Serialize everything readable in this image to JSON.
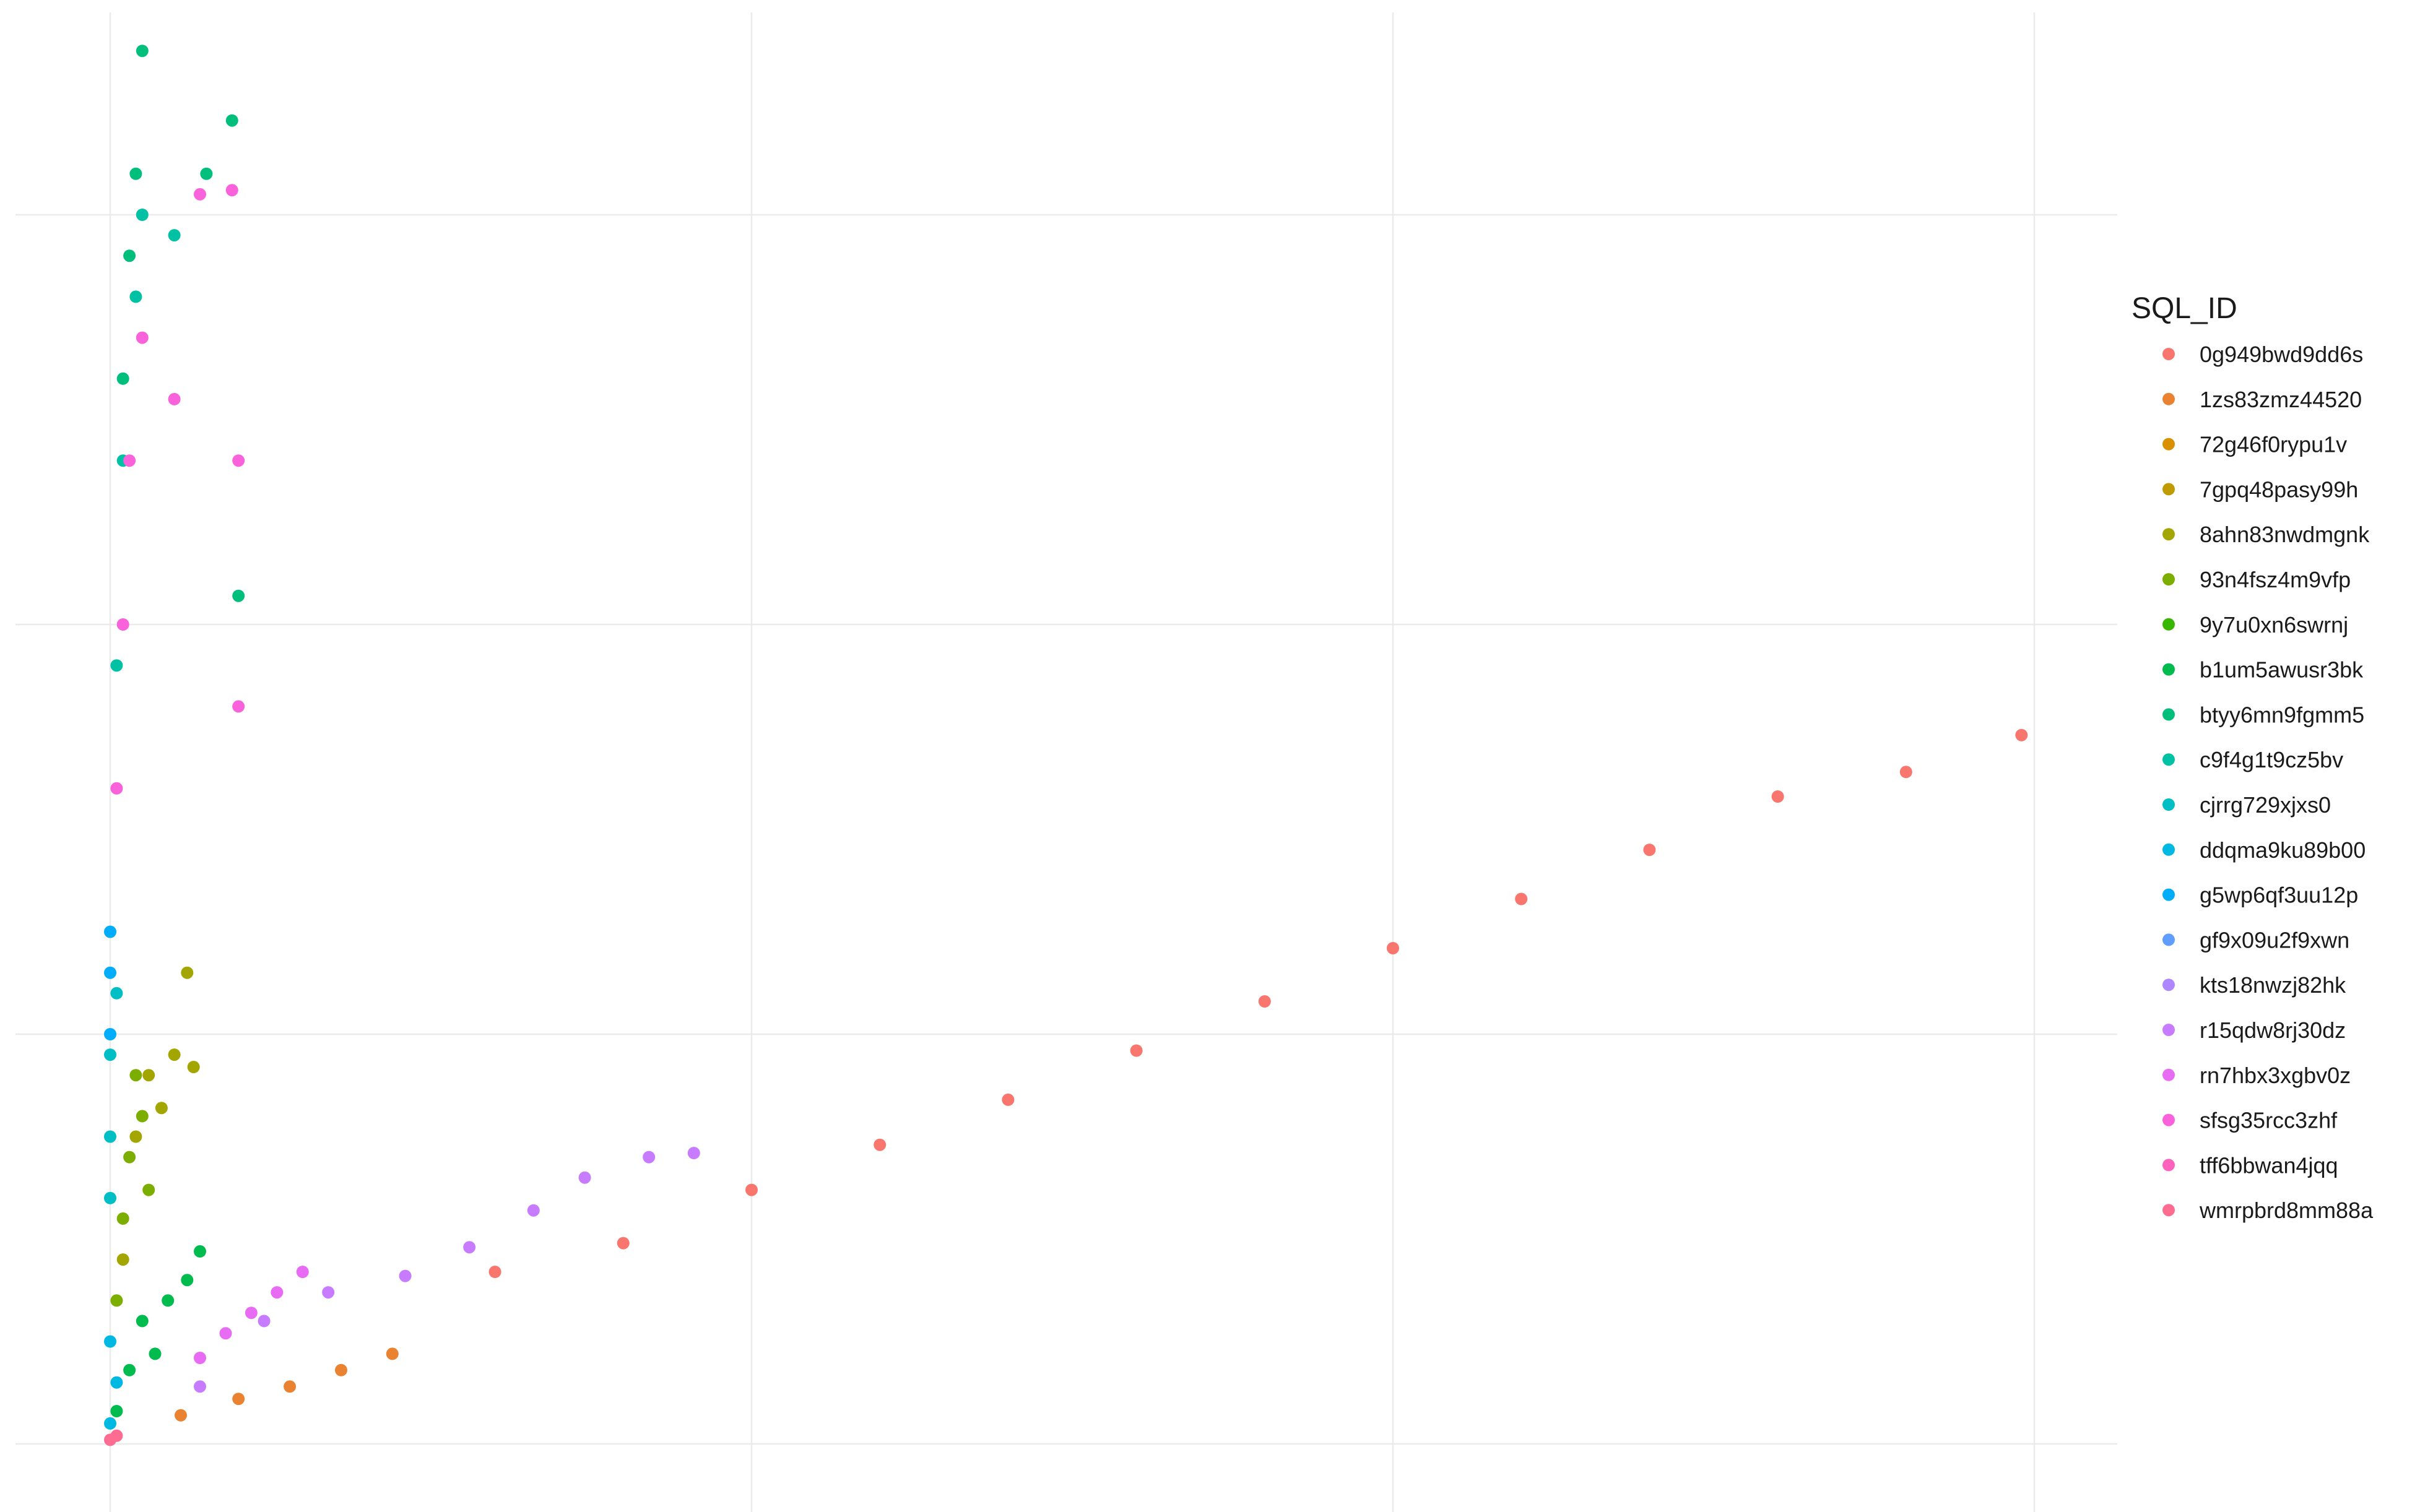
{
  "chart_data": {
    "type": "scatter",
    "title": "",
    "xlabel": "",
    "ylabel": "",
    "xlim": [
      0,
      3.28
    ],
    "ylim": [
      0,
      3.6
    ],
    "x_gridlines": [
      0,
      1,
      2,
      3
    ],
    "y_gridlines": [
      0,
      1,
      2,
      3
    ],
    "grid": true,
    "legend_title": "SQL_ID",
    "legend_position": "right",
    "series": [
      {
        "name": "0g949bwd9dd6s",
        "color": "#F8766D",
        "points": [
          [
            0.6,
            0.42
          ],
          [
            0.8,
            0.49
          ],
          [
            1.0,
            0.62
          ],
          [
            1.2,
            0.73
          ],
          [
            1.4,
            0.84
          ],
          [
            1.6,
            0.96
          ],
          [
            1.8,
            1.08
          ],
          [
            2.0,
            1.21
          ],
          [
            2.2,
            1.33
          ],
          [
            2.4,
            1.45
          ],
          [
            2.6,
            1.58
          ],
          [
            2.8,
            1.64
          ],
          [
            2.98,
            1.73
          ]
        ]
      },
      {
        "name": "1zs83zmz44520",
        "color": "#EA8331",
        "points": [
          [
            0.11,
            0.07
          ],
          [
            0.2,
            0.11
          ],
          [
            0.28,
            0.14
          ],
          [
            0.36,
            0.18
          ],
          [
            0.44,
            0.22
          ]
        ]
      },
      {
        "name": "72g46f0rypu1v",
        "color": "#D89000",
        "points": []
      },
      {
        "name": "7gpq48pasy99h",
        "color": "#C09B00",
        "points": []
      },
      {
        "name": "8ahn83nwdmgnk",
        "color": "#A3A500",
        "points": [
          [
            0.02,
            0.45
          ],
          [
            0.04,
            0.75
          ],
          [
            0.06,
            0.9
          ],
          [
            0.08,
            0.82
          ],
          [
            0.1,
            0.95
          ],
          [
            0.12,
            1.15
          ],
          [
            0.13,
            0.92
          ]
        ]
      },
      {
        "name": "93n4fsz4m9vfp",
        "color": "#7CAE00",
        "points": [
          [
            0.01,
            0.35
          ],
          [
            0.02,
            0.55
          ],
          [
            0.03,
            0.7
          ],
          [
            0.04,
            0.9
          ],
          [
            0.05,
            0.8
          ],
          [
            0.06,
            0.62
          ]
        ]
      },
      {
        "name": "9y7u0xn6swrnj",
        "color": "#39B600",
        "points": []
      },
      {
        "name": "b1um5awusr3bk",
        "color": "#00BB4E",
        "points": [
          [
            0.01,
            0.08
          ],
          [
            0.03,
            0.18
          ],
          [
            0.05,
            0.3
          ],
          [
            0.07,
            0.22
          ],
          [
            0.09,
            0.35
          ],
          [
            0.12,
            0.4
          ],
          [
            0.14,
            0.47
          ]
        ]
      },
      {
        "name": "btyy6mn9fgmm5",
        "color": "#00BF7D",
        "points": [
          [
            0.02,
            2.6
          ],
          [
            0.03,
            2.9
          ],
          [
            0.04,
            3.1
          ],
          [
            0.05,
            3.4
          ],
          [
            0.15,
            3.1
          ],
          [
            0.19,
            3.23
          ],
          [
            0.2,
            2.07
          ]
        ]
      },
      {
        "name": "c9f4g1t9cz5bv",
        "color": "#00C1A3",
        "points": [
          [
            0.01,
            1.9
          ],
          [
            0.02,
            2.4
          ],
          [
            0.04,
            2.8
          ],
          [
            0.05,
            3.0
          ],
          [
            0.1,
            2.95
          ]
        ]
      },
      {
        "name": "cjrrg729xjxs0",
        "color": "#00BFC4",
        "points": [
          [
            0.0,
            0.75
          ],
          [
            0.0,
            0.95
          ],
          [
            0.01,
            1.1
          ],
          [
            0.0,
            0.6
          ]
        ]
      },
      {
        "name": "ddqma9ku89b00",
        "color": "#00B9E3",
        "points": [
          [
            0.0,
            0.05
          ],
          [
            0.01,
            0.15
          ],
          [
            0.0,
            0.25
          ]
        ]
      },
      {
        "name": "g5wp6qf3uu12p",
        "color": "#00ADFA",
        "points": [
          [
            0.0,
            1.15
          ],
          [
            0.0,
            1.25
          ],
          [
            0.0,
            1.0
          ]
        ]
      },
      {
        "name": "gf9x09u2f9xwn",
        "color": "#619CFF",
        "points": []
      },
      {
        "name": "kts18nwzj82hk",
        "color": "#AE87FF",
        "points": []
      },
      {
        "name": "r15qdw8rj30dz",
        "color": "#C77CFF",
        "points": [
          [
            0.14,
            0.14
          ],
          [
            0.24,
            0.3
          ],
          [
            0.34,
            0.37
          ],
          [
            0.46,
            0.41
          ],
          [
            0.56,
            0.48
          ],
          [
            0.66,
            0.57
          ],
          [
            0.74,
            0.65
          ],
          [
            0.84,
            0.7
          ],
          [
            0.91,
            0.71
          ]
        ]
      },
      {
        "name": "rn7hbx3xgbv0z",
        "color": "#E76BF3",
        "points": [
          [
            0.14,
            0.21
          ],
          [
            0.18,
            0.27
          ],
          [
            0.22,
            0.32
          ],
          [
            0.26,
            0.37
          ],
          [
            0.3,
            0.42
          ]
        ]
      },
      {
        "name": "sfsg35rcc3zhf",
        "color": "#FA62DB",
        "points": [
          [
            0.01,
            1.6
          ],
          [
            0.02,
            2.0
          ],
          [
            0.03,
            2.4
          ],
          [
            0.05,
            2.7
          ],
          [
            0.1,
            2.55
          ],
          [
            0.14,
            3.05
          ],
          [
            0.19,
            3.06
          ],
          [
            0.2,
            2.4
          ],
          [
            0.2,
            1.8
          ]
        ]
      },
      {
        "name": "tff6bbwan4jqq",
        "color": "#FF62BC",
        "points": []
      },
      {
        "name": "wmrpbrd8mm88a",
        "color": "#FF6C91",
        "points": [
          [
            0.0,
            0.01
          ],
          [
            0.01,
            0.02
          ]
        ]
      }
    ]
  }
}
